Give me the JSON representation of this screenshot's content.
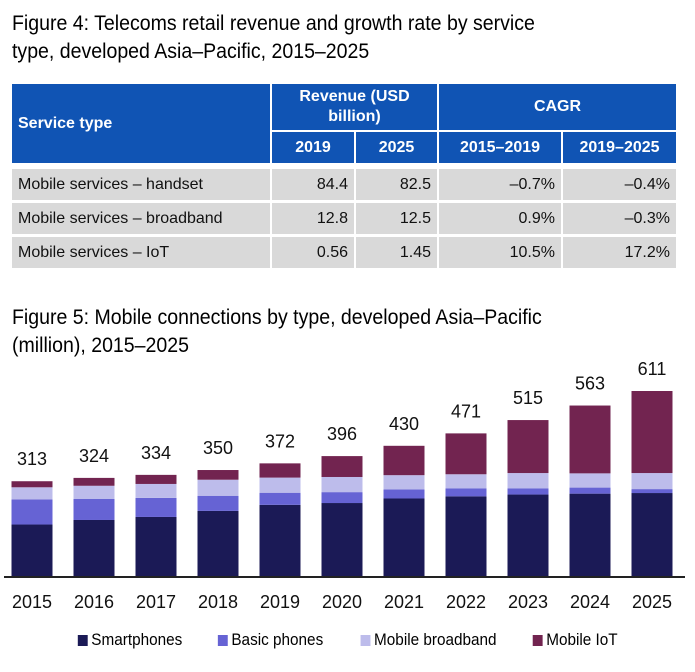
{
  "figure4": {
    "title_line1": "Figure 4: Telecoms retail revenue and growth rate by service",
    "title_line2": "type, developed Asia–Pacific, 2015–2025",
    "table": {
      "header_service": "Service type",
      "header_revenue": "Revenue (USD billion)",
      "header_cagr": "CAGR",
      "sub_headers": [
        "2019",
        "2025",
        "2015–2019",
        "2019–2025"
      ],
      "rows": [
        {
          "service": "Mobile services – handset",
          "rev2019": "84.4",
          "rev2025": "82.5",
          "cagr1519": "–0.7%",
          "cagr1925": "–0.4%"
        },
        {
          "service": "Mobile services – broadband",
          "rev2019": "12.8",
          "rev2025": "12.5",
          "cagr1519": "0.9%",
          "cagr1925": "–0.3%"
        },
        {
          "service": "Mobile services – IoT",
          "rev2019": "0.56",
          "rev2025": "1.45",
          "cagr1519": "10.5%",
          "cagr1925": "17.2%"
        }
      ]
    },
    "colors": {
      "header_bg": "#1054B4",
      "row_bg": "#D9D9D9"
    }
  },
  "figure5": {
    "title_line1": "Figure 5: Mobile connections by type, developed Asia–Pacific",
    "title_line2": "(million), 2015–2025"
  },
  "chart_data": {
    "type": "bar",
    "stacked": true,
    "title": "Figure 5: Mobile connections by type, developed Asia–Pacific (million), 2015–2025",
    "xlabel": "",
    "ylabel": "",
    "ylim": [
      0,
      611
    ],
    "grid": false,
    "legend_position": "bottom",
    "categories": [
      "2015",
      "2016",
      "2017",
      "2018",
      "2019",
      "2020",
      "2021",
      "2022",
      "2023",
      "2024",
      "2025"
    ],
    "totals": [
      313,
      324,
      334,
      350,
      372,
      396,
      430,
      471,
      515,
      563,
      611
    ],
    "series": [
      {
        "name": "Smartphones",
        "color": "#1B1A56",
        "values": [
          170,
          185,
          195,
          215,
          235,
          241,
          256,
          263,
          269,
          272,
          274
        ]
      },
      {
        "name": "Basic phones",
        "color": "#6663D4",
        "values": [
          83,
          70,
          63,
          50,
          40,
          36,
          30,
          26,
          20,
          20,
          13
        ]
      },
      {
        "name": "Mobile broadband",
        "color": "#BDBCEB",
        "values": [
          40,
          43,
          46,
          53,
          50,
          50,
          47,
          47,
          51,
          47,
          53
        ]
      },
      {
        "name": "Mobile IoT",
        "color": "#722450",
        "values": [
          20,
          26,
          30,
          32,
          47,
          69,
          97,
          135,
          175,
          224,
          271
        ]
      }
    ]
  }
}
